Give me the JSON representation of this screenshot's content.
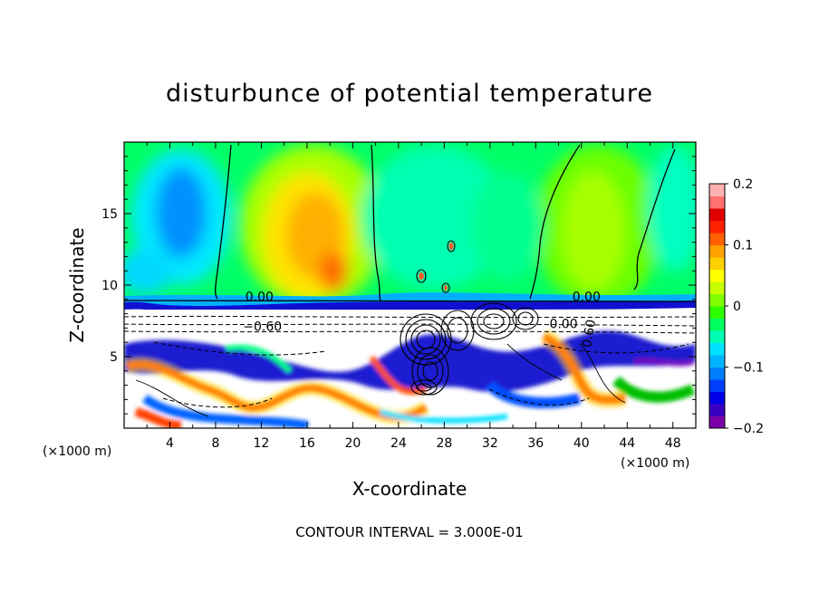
{
  "chart_data": {
    "type": "heatmap",
    "title": "disturbunce of potential temperature",
    "xlabel": "X-coordinate",
    "ylabel": "Z-coordinate",
    "x_unit_left": "(×1000 m)",
    "x_unit_right": "(×1000 m)",
    "xlim": [
      0,
      50
    ],
    "ylim": [
      0,
      20
    ],
    "xticks": [
      "4",
      "8",
      "12",
      "16",
      "20",
      "24",
      "28",
      "32",
      "36",
      "40",
      "44",
      "48"
    ],
    "yticks": [
      "5",
      "10",
      "15"
    ],
    "colorbar": {
      "range": [
        -0.2,
        0.2
      ],
      "tick_labels": [
        "0.2",
        "0.1",
        "0",
        "−0.1",
        "−0.2"
      ],
      "tick_values": [
        0.2,
        0.1,
        0,
        -0.1,
        -0.2
      ],
      "colors": [
        "#7b00a8",
        "#3a00c0",
        "#0000e6",
        "#0040ff",
        "#0080ff",
        "#00b4ff",
        "#00e0ff",
        "#00ffb4",
        "#00ff60",
        "#30ff00",
        "#80ff00",
        "#c8ff00",
        "#ffff00",
        "#ffd000",
        "#ffa000",
        "#ff6000",
        "#ff2000",
        "#e00000",
        "#ff7070",
        "#ffb0b0"
      ]
    },
    "contour_labels": [
      "0.00",
      "−0.60",
      "0.00",
      "0.00",
      "0.60"
    ],
    "contour_interval_text": "CONTOUR INTERVAL = 3.000E-01"
  }
}
